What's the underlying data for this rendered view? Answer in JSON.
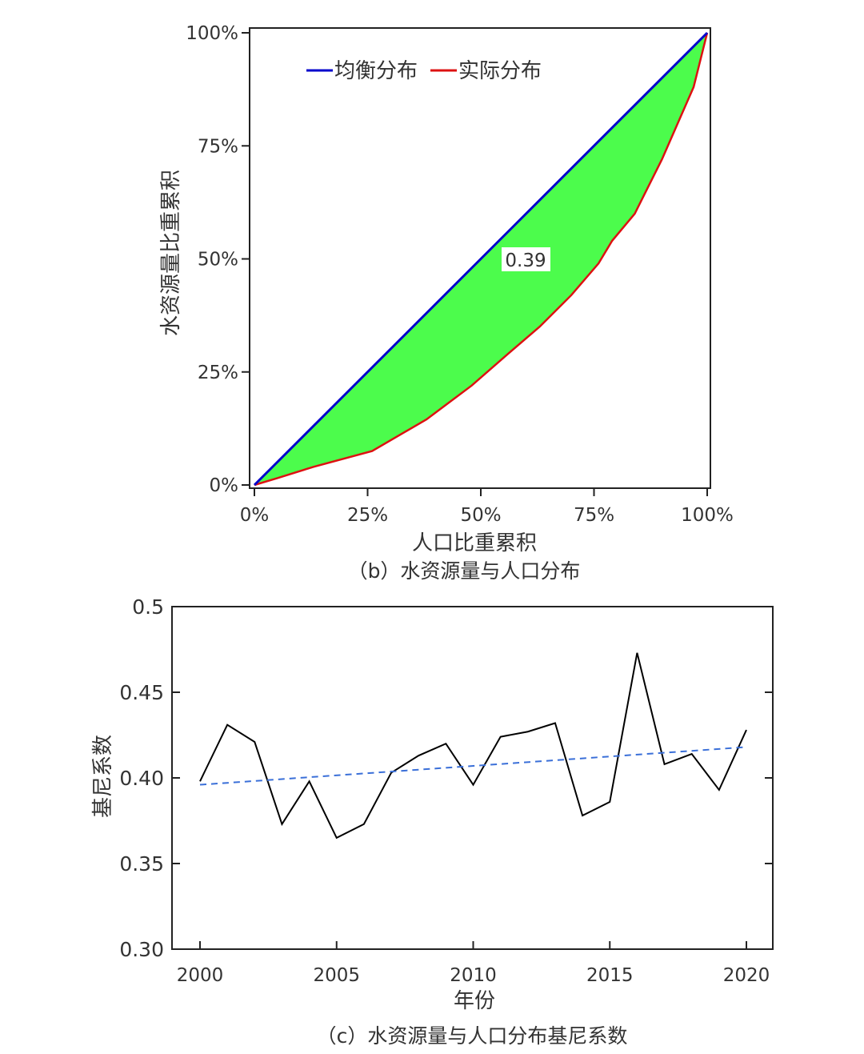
{
  "chart_data": [
    {
      "type": "area",
      "caption": "（b）水资源量与人口分布",
      "xlabel": "人口比重累积",
      "ylabel": "水资源量比重累积",
      "x_ticks": [
        "0%",
        "25%",
        "50%",
        "75%",
        "100%"
      ],
      "y_ticks": [
        "0%",
        "25%",
        "50%",
        "75%",
        "100%"
      ],
      "xlim": [
        0,
        100
      ],
      "ylim": [
        0,
        100
      ],
      "legend_position": "top-left",
      "annotation": "0.39",
      "series": [
        {
          "name": "均衡分布",
          "color": "#0000cc",
          "x": [
            0,
            100
          ],
          "y": [
            0,
            100
          ]
        },
        {
          "name": "实际分布",
          "color": "#dd1111",
          "x": [
            0,
            5,
            13,
            26,
            38,
            48,
            56,
            63,
            70,
            76,
            79,
            84,
            90,
            97,
            100
          ],
          "y": [
            0,
            1.5,
            4,
            7.5,
            14.5,
            22,
            29,
            35,
            42,
            49,
            54,
            60,
            72,
            88,
            100
          ]
        }
      ],
      "fill_color": "#4cfc4c"
    },
    {
      "type": "line",
      "caption": "（c）水资源量与人口分布基尼系数",
      "xlabel": "年份",
      "ylabel": "基尼系数",
      "x_ticks": [
        "2000",
        "2005",
        "2010",
        "2015",
        "2020"
      ],
      "y_ticks": [
        "0.30",
        "0.35",
        "0.40",
        "0.45",
        "0.5"
      ],
      "xlim": [
        1999,
        2021
      ],
      "ylim": [
        0.3,
        0.5
      ],
      "grid": false,
      "series": [
        {
          "kind": "data",
          "color": "#000000",
          "x": [
            2000,
            2001,
            2002,
            2003,
            2004,
            2005,
            2006,
            2007,
            2008,
            2009,
            2010,
            2011,
            2012,
            2013,
            2014,
            2015,
            2016,
            2017,
            2018,
            2019,
            2020
          ],
          "y": [
            0.398,
            0.431,
            0.421,
            0.373,
            0.398,
            0.365,
            0.373,
            0.403,
            0.413,
            0.42,
            0.396,
            0.424,
            0.427,
            0.432,
            0.378,
            0.386,
            0.473,
            0.408,
            0.414,
            0.393,
            0.428
          ]
        },
        {
          "kind": "trend",
          "color": "#3a6fd8",
          "x": [
            2000,
            2020
          ],
          "y": [
            0.396,
            0.418
          ]
        }
      ]
    }
  ]
}
